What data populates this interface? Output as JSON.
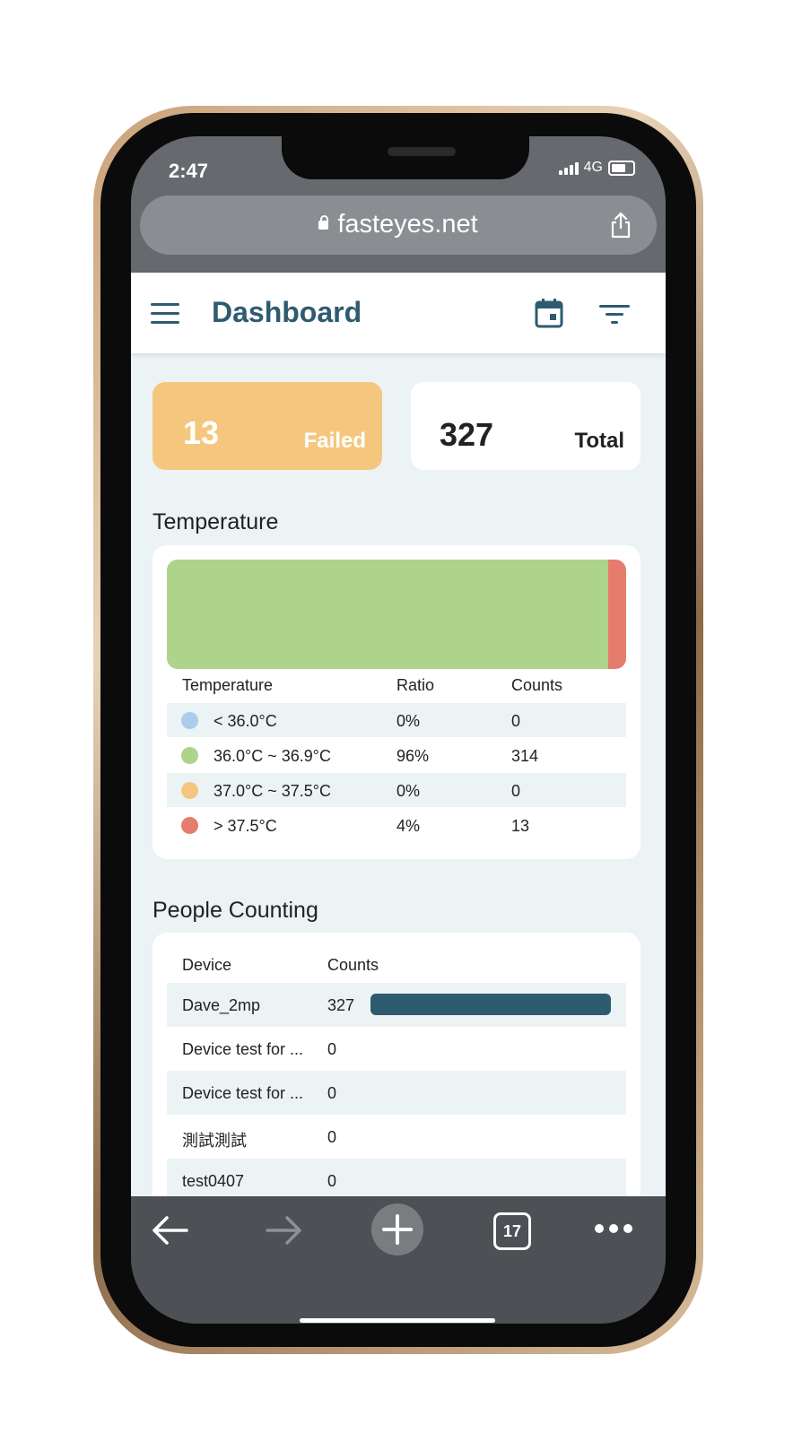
{
  "status": {
    "time": "2:47",
    "network": "4G"
  },
  "browser": {
    "url": "fasteyes.net",
    "tab_count": "17"
  },
  "header": {
    "title": "Dashboard"
  },
  "cards": [
    {
      "value": "13",
      "label": "Failed"
    },
    {
      "value": "327",
      "label": "Total"
    }
  ],
  "temperature": {
    "title": "Temperature",
    "headers": [
      "Temperature",
      "Ratio",
      "Counts"
    ],
    "rows": [
      {
        "range": "< 36.0°C",
        "ratio": "0%",
        "count": "0"
      },
      {
        "range": "36.0°C ~ 36.9°C",
        "ratio": "96%",
        "count": "314"
      },
      {
        "range": "37.0°C ~ 37.5°C",
        "ratio": "0%",
        "count": "0"
      },
      {
        "range": "> 37.5°C",
        "ratio": "4%",
        "count": "13"
      }
    ],
    "colors": [
      "#a9cdea",
      "#aed38a",
      "#f5c77e",
      "#e57c6c"
    ]
  },
  "chart_data": {
    "type": "bar",
    "categories": [
      "< 36.0°C",
      "36.0°C ~ 36.9°C",
      "37.0°C ~ 37.5°C",
      "> 37.5°C"
    ],
    "values": [
      0,
      314,
      0,
      13
    ]
  },
  "people": {
    "title": "People Counting",
    "headers": [
      "Device",
      "Counts"
    ],
    "rows": [
      {
        "device": "Dave_2mp",
        "count": "327"
      },
      {
        "device": "Device test for ...",
        "count": "0"
      },
      {
        "device": "Device test for ...",
        "count": "0"
      },
      {
        "device": "測試測試",
        "count": "0"
      },
      {
        "device": "test0407",
        "count": "0"
      }
    ],
    "max": 327,
    "bar_color": "#2f5b70"
  }
}
